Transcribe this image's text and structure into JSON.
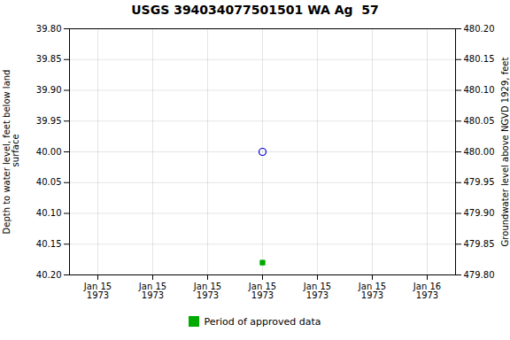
{
  "chart_data": {
    "type": "scatter",
    "title": "USGS 394034077501501 WA Ag  57",
    "ylabel": "Depth to water level, feet below land\n surface",
    "y2label": "Groundwater level above NGVD 1929, feet",
    "categories": [
      "Jan 15\n1973",
      "Jan 15\n1973",
      "Jan 15\n1973",
      "Jan 15\n1973",
      "Jan 15\n1973",
      "Jan 15\n1973",
      "Jan 16\n1973"
    ],
    "series": [
      {
        "color": "#0000cc",
        "marker": "open_circle",
        "values": [
          null,
          null,
          null,
          40.0,
          null,
          null,
          null
        ]
      },
      {
        "name": "Period of approved data",
        "color": "#00aa00",
        "marker": "square",
        "values": [
          null,
          null,
          null,
          40.18,
          null,
          null,
          null
        ]
      }
    ],
    "ylim": [
      40.2,
      39.8
    ],
    "yticks": [
      {
        "value": 39.8,
        "label": "39.80"
      },
      {
        "value": 39.85,
        "label": "39.85"
      },
      {
        "value": 39.9,
        "label": "39.90"
      },
      {
        "value": 39.95,
        "label": "39.95"
      },
      {
        "value": 40,
        "label": "40.00"
      },
      {
        "value": 40.05,
        "label": "40.05"
      },
      {
        "value": 40.1,
        "label": "40.10"
      },
      {
        "value": 40.15,
        "label": "40.15"
      },
      {
        "value": 40.2,
        "label": "40.20"
      }
    ],
    "y2lim": [
      479.8,
      480.2
    ],
    "y2ticks": [
      {
        "value": 480.2,
        "label": "480.20"
      },
      {
        "value": 480.15,
        "label": "480.15"
      },
      {
        "value": 480.1,
        "label": "480.10"
      },
      {
        "value": 480.05,
        "label": "480.05"
      },
      {
        "value": 480,
        "label": "480.00"
      },
      {
        "value": 479.95,
        "label": "479.95"
      },
      {
        "value": 479.9,
        "label": "479.90"
      },
      {
        "value": 479.85,
        "label": "479.85"
      },
      {
        "value": 479.8,
        "label": "479.80"
      }
    ],
    "grid": true,
    "legend": "bottom"
  }
}
